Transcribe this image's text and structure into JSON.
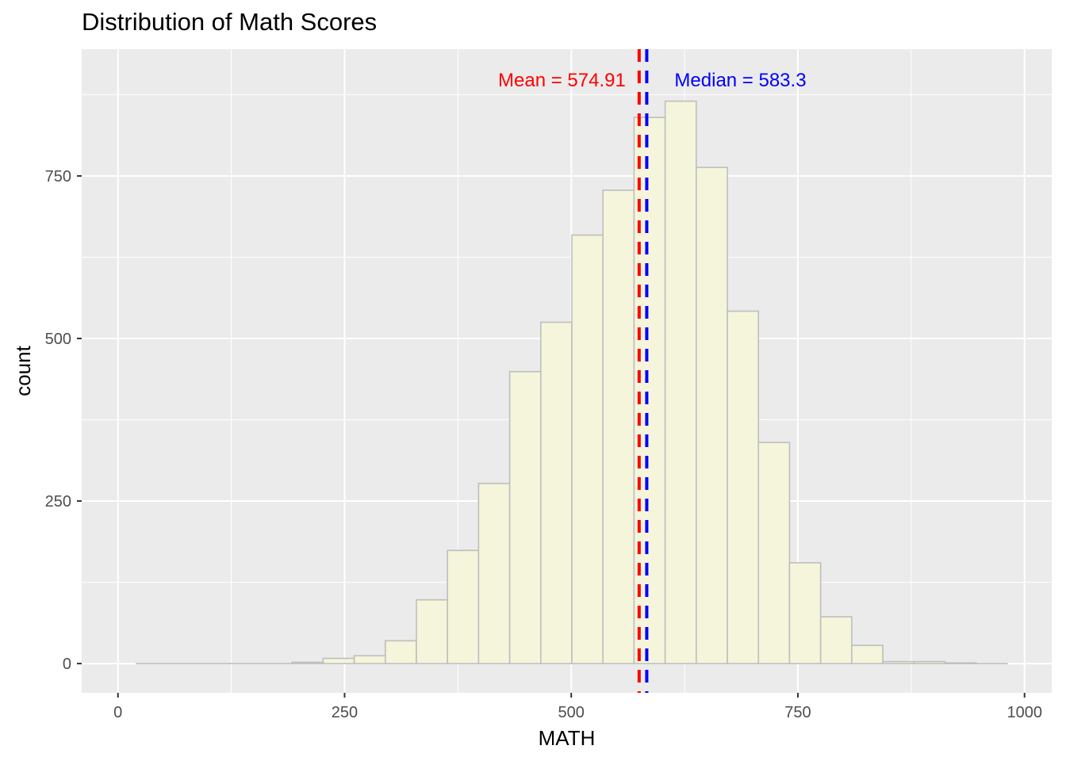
{
  "chart_data": {
    "type": "histogram",
    "title": "Distribution of Math Scores",
    "xlabel": "MATH",
    "ylabel": "count",
    "xlim": [
      -40,
      1030
    ],
    "ylim": [
      -45,
      945
    ],
    "x_ticks": [
      0,
      250,
      500,
      750,
      1000
    ],
    "x_tick_labels": [
      "0",
      "250",
      "500",
      "750",
      "1000"
    ],
    "y_ticks": [
      0,
      250,
      500,
      750
    ],
    "y_tick_labels": [
      "0",
      "250",
      "500",
      "750"
    ],
    "grid": true,
    "bins": {
      "left_edges": [
        20.5,
        54.8,
        89.1,
        123.4,
        157.7,
        192.0,
        226.3,
        260.6,
        294.9,
        329.2,
        363.5,
        397.8,
        432.1,
        466.4,
        500.7,
        535.0,
        569.3,
        603.6,
        637.9,
        672.2,
        706.5,
        740.8,
        775.1,
        809.4,
        843.7,
        878.0,
        912.3,
        946.6
      ],
      "width": 34.3,
      "counts": [
        0,
        0,
        0,
        0,
        0,
        2,
        8,
        12,
        35,
        98,
        174,
        277,
        449,
        525,
        659,
        728,
        840,
        865,
        763,
        542,
        340,
        155,
        72,
        28,
        3,
        3,
        1,
        0
      ]
    },
    "reference_lines": [
      {
        "name": "mean",
        "value": 574.91,
        "label": "Mean = 574.91",
        "color": "#ff0000"
      },
      {
        "name": "median",
        "value": 583.3,
        "label": "Median = 583.3",
        "color": "#0000ff"
      }
    ],
    "colors": {
      "bar_fill": "#f5f5dc",
      "bar_stroke": "#bebebe",
      "panel_bg": "#ebebeb",
      "grid": "#ffffff"
    }
  }
}
